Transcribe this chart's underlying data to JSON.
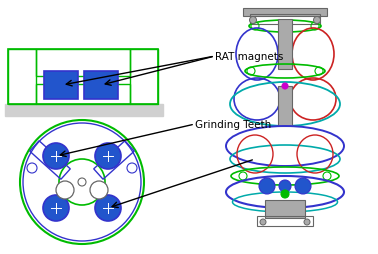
{
  "background_color": "#ffffff",
  "label_rat_magnets": "RAT magnets",
  "label_grinding_teeth": "Grinding Teeth",
  "green": "#00bb00",
  "blue_outline": "#3333cc",
  "blue_fill": "#2255cc",
  "gray_light": "#d0d0d0",
  "gray_mid": "#aaaaaa",
  "gray_dark": "#666666",
  "red": "#cc2222",
  "cyan": "#00aaaa",
  "black": "#000000",
  "white": "#ffffff"
}
